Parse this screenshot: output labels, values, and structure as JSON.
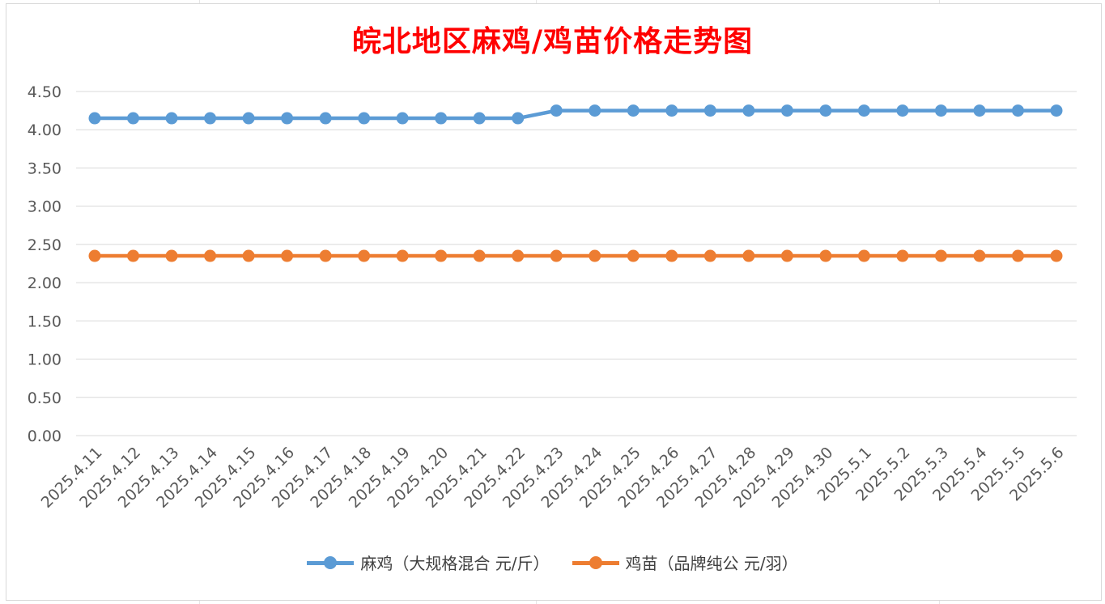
{
  "chart_data": {
    "type": "line",
    "title": "皖北地区麻鸡/鸡苗价格走势图",
    "categories": [
      "2025.4.11",
      "2025.4.12",
      "2025.4.13",
      "2025.4.14",
      "2025.4.15",
      "2025.4.16",
      "2025.4.17",
      "2025.4.18",
      "2025.4.19",
      "2025.4.20",
      "2025.4.21",
      "2025.4.22",
      "2025.4.23",
      "2025.4.24",
      "2025.4.25",
      "2025.4.26",
      "2025.4.27",
      "2025.4.28",
      "2025.4.29",
      "2025.4.30",
      "2025.5.1",
      "2025.5.2",
      "2025.5.3",
      "2025.5.4",
      "2025.5.5",
      "2025.5.6"
    ],
    "series": [
      {
        "name": "麻鸡（大规格混合 元/斤）",
        "color": "#5b9bd5",
        "values": [
          4.15,
          4.15,
          4.15,
          4.15,
          4.15,
          4.15,
          4.15,
          4.15,
          4.15,
          4.15,
          4.15,
          4.15,
          4.25,
          4.25,
          4.25,
          4.25,
          4.25,
          4.25,
          4.25,
          4.25,
          4.25,
          4.25,
          4.25,
          4.25,
          4.25,
          4.25
        ]
      },
      {
        "name": "鸡苗（品牌纯公 元/羽）",
        "color": "#ed7d31",
        "values": [
          2.35,
          2.35,
          2.35,
          2.35,
          2.35,
          2.35,
          2.35,
          2.35,
          2.35,
          2.35,
          2.35,
          2.35,
          2.35,
          2.35,
          2.35,
          2.35,
          2.35,
          2.35,
          2.35,
          2.35,
          2.35,
          2.35,
          2.35,
          2.35,
          2.35,
          2.35
        ]
      }
    ],
    "yticks": [
      "0.00",
      "0.50",
      "1.00",
      "1.50",
      "2.00",
      "2.50",
      "3.00",
      "3.50",
      "4.00",
      "4.50"
    ],
    "ylim": [
      0,
      4.5
    ],
    "grid": true,
    "legend_position": "bottom",
    "title_color": "#ff0000"
  }
}
